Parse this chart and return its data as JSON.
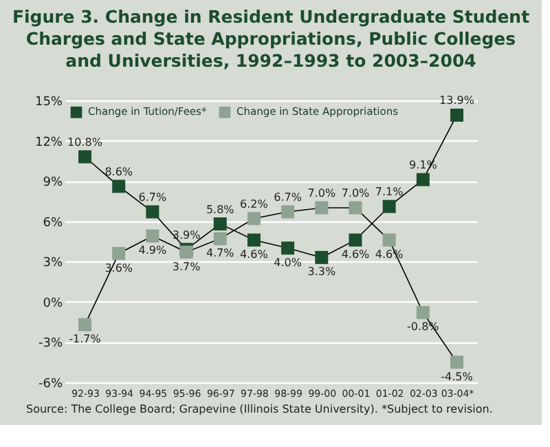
{
  "chart_data": {
    "type": "line",
    "title": "Figure 3. Change in Resident Undergraduate Student Charges and State Appropriations, Public Colleges and Universities, 1992–1993 to 2003–2004",
    "categories": [
      "92-93",
      "93-94",
      "94-95",
      "95-96",
      "96-97",
      "97-98",
      "98-99",
      "99-00",
      "00-01",
      "01-02",
      "02-03",
      "03-04*"
    ],
    "series": [
      {
        "name": "Change in Tution/Fees*",
        "color": "#1b4d2e",
        "values": [
          10.8,
          8.6,
          6.7,
          3.9,
          5.8,
          4.6,
          4.0,
          3.3,
          4.6,
          7.1,
          9.1,
          13.9
        ],
        "value_labels": [
          "10.8%",
          "8.6%",
          "6.7%",
          "3.9%",
          "5.8%",
          "4.6%",
          "4.0%",
          "3.3%",
          "4.6%",
          "7.1%",
          "9.1%",
          "13.9%"
        ]
      },
      {
        "name": "Change in State Appropriations",
        "color": "#8fa393",
        "values": [
          -1.7,
          3.6,
          4.9,
          3.7,
          4.7,
          6.2,
          6.7,
          7.0,
          7.0,
          4.6,
          -0.8,
          -4.5
        ],
        "value_labels": [
          "-1.7%",
          "3.6%",
          "4.9%",
          "3.7%",
          "4.7%",
          "6.2%",
          "6.7%",
          "7.0%",
          "7.0%",
          "4.6%",
          "-0.8%",
          "-4.5%"
        ]
      }
    ],
    "ylim": [
      -6,
      15
    ],
    "yticks": [
      {
        "value": -6,
        "label": "-6%"
      },
      {
        "value": -3,
        "label": "-3%"
      },
      {
        "value": 0,
        "label": "0%"
      },
      {
        "value": 3,
        "label": "3%"
      },
      {
        "value": 6,
        "label": "6%"
      },
      {
        "value": 9,
        "label": "9%"
      },
      {
        "value": 12,
        "label": "12%"
      },
      {
        "value": 15,
        "label": "15%"
      }
    ],
    "grid": "y",
    "legend": "top left",
    "marker": "square",
    "line_style": "solid",
    "annotations": [
      "Source: The College Board; Grapevine (Illinois State University). *Subject to revision."
    ]
  }
}
